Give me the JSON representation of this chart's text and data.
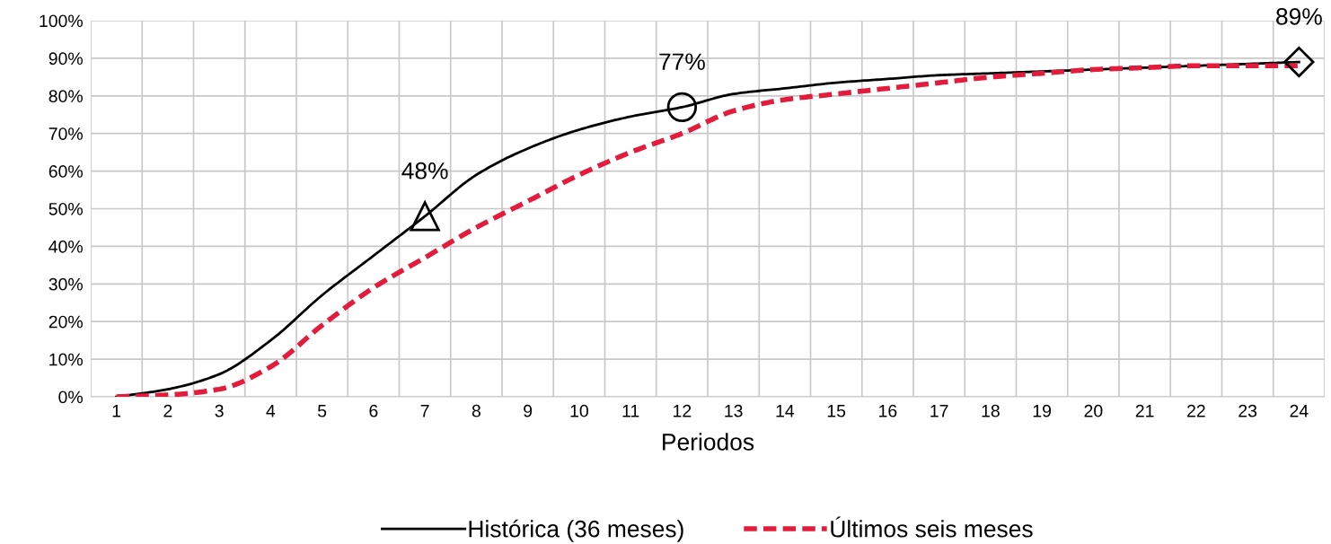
{
  "chart_data": {
    "type": "line",
    "xlabel": "Periodos",
    "categories": [
      "1",
      "2",
      "3",
      "4",
      "5",
      "6",
      "7",
      "8",
      "9",
      "10",
      "11",
      "12",
      "13",
      "14",
      "15",
      "16",
      "17",
      "18",
      "19",
      "20",
      "21",
      "22",
      "23",
      "24"
    ],
    "ylim": [
      0,
      1
    ],
    "yticks": [
      {
        "value": 0,
        "label": "0%"
      },
      {
        "value": 0.1,
        "label": "10%"
      },
      {
        "value": 0.2,
        "label": "20%"
      },
      {
        "value": 0.3,
        "label": "30%"
      },
      {
        "value": 0.4,
        "label": "40%"
      },
      {
        "value": 0.5,
        "label": "50%"
      },
      {
        "value": 0.6,
        "label": "60%"
      },
      {
        "value": 0.7,
        "label": "70%"
      },
      {
        "value": 0.8,
        "label": "80%"
      },
      {
        "value": 0.9,
        "label": "90%"
      },
      {
        "value": 1,
        "label": "100%"
      }
    ],
    "grid": true,
    "legend": "bottom",
    "marker": "none",
    "series": [
      {
        "name": "Histórica (36 meses)",
        "color": "#000000",
        "line_style": "solid",
        "values": [
          0.0,
          0.02,
          0.06,
          0.15,
          0.27,
          0.375,
          0.48,
          0.59,
          0.66,
          0.71,
          0.745,
          0.77,
          0.805,
          0.82,
          0.835,
          0.845,
          0.855,
          0.86,
          0.865,
          0.87,
          0.875,
          0.88,
          0.885,
          0.89
        ]
      },
      {
        "name": "Últimos seis meses",
        "color": "#e31b3c",
        "line_style": "dashed",
        "values": [
          0.0,
          0.005,
          0.02,
          0.08,
          0.19,
          0.29,
          0.37,
          0.45,
          0.52,
          0.59,
          0.65,
          0.7,
          0.76,
          0.79,
          0.805,
          0.82,
          0.835,
          0.85,
          0.86,
          0.87,
          0.875,
          0.88,
          0.88,
          0.88
        ]
      },
      {
        "type": "scatter",
        "x": [
          "7"
        ],
        "values": [
          0.48
        ],
        "value_labels": [
          "48%"
        ],
        "marker": "triangle",
        "color": "#000000"
      },
      {
        "type": "scatter",
        "x": [
          "12"
        ],
        "values": [
          0.77
        ],
        "value_labels": [
          "77%"
        ],
        "marker": "circle",
        "color": "#000000"
      },
      {
        "type": "scatter",
        "x": [
          "24"
        ],
        "values": [
          0.89
        ],
        "value_labels": [
          "89%"
        ],
        "marker": "diamond",
        "color": "#000000"
      }
    ]
  }
}
